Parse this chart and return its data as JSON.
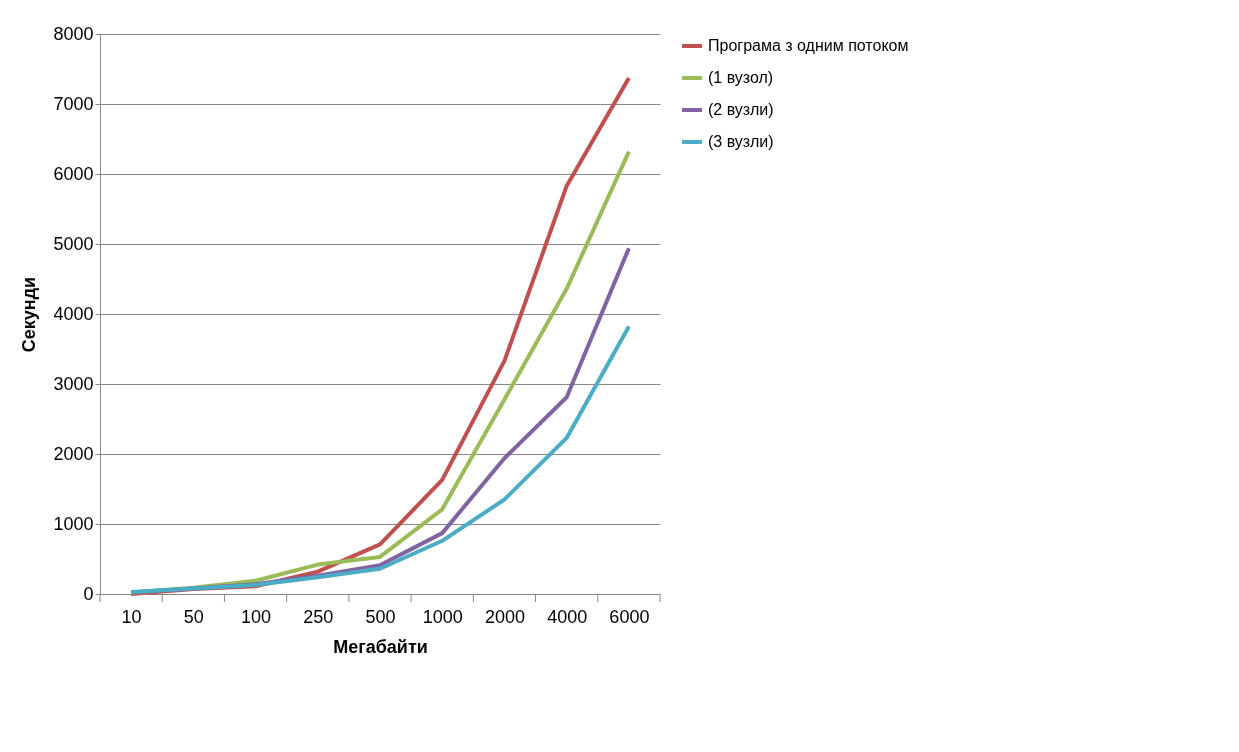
{
  "chart_data": {
    "type": "line",
    "xlabel": "Мегабайти",
    "ylabel": "Секунди",
    "categories": [
      "10",
      "50",
      "100",
      "250",
      "500",
      "1000",
      "2000",
      "4000",
      "6000"
    ],
    "series": [
      {
        "name": "Програма з одним потоком",
        "color": "#c0504d",
        "values": [
          0,
          70,
          110,
          320,
          710,
          1630,
          3330,
          5830,
          7370
        ]
      },
      {
        "name": "(1 вузол)",
        "color": "#9bbb59",
        "values": [
          20,
          90,
          190,
          420,
          530,
          1210,
          2780,
          4360,
          6320
        ]
      },
      {
        "name": "(2 вузли)",
        "color": "#8064a2",
        "values": [
          20,
          80,
          140,
          260,
          410,
          870,
          1940,
          2810,
          4940
        ]
      },
      {
        "name": "(3 вузли)",
        "color": "#4bacc6",
        "values": [
          30,
          80,
          130,
          240,
          360,
          760,
          1350,
          2230,
          3820
        ]
      }
    ],
    "ylim": [
      0,
      8000
    ],
    "yticks": [
      0,
      1000,
      2000,
      3000,
      4000,
      5000,
      6000,
      7000,
      8000
    ],
    "grid": "y",
    "legend": "right",
    "marker": "none",
    "line_style": "solid"
  }
}
